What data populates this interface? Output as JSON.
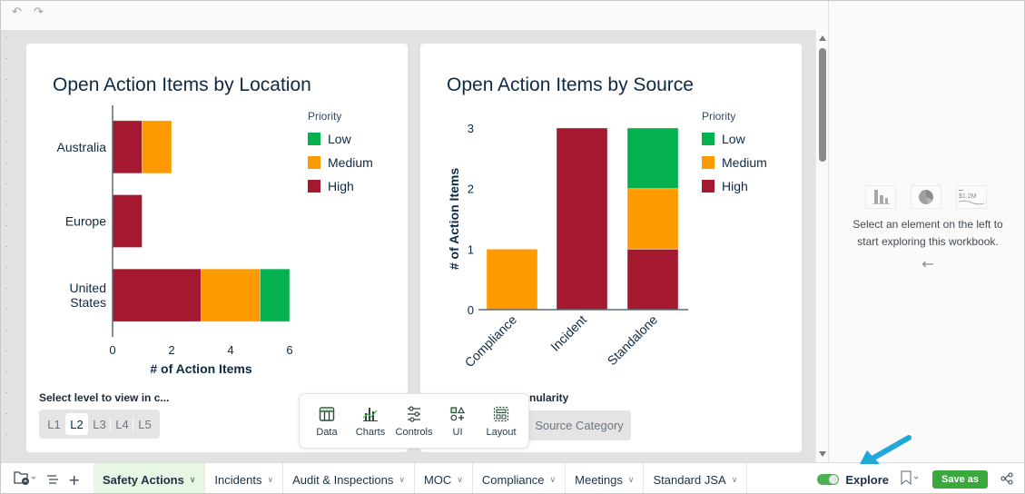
{
  "toolbar": {
    "undo_icon": "undo-icon",
    "redo_icon": "redo-icon"
  },
  "colors": {
    "low": "#05b04f",
    "medium": "#fd9a00",
    "high": "#a51930",
    "accent_green": "#3aa83d",
    "callout": "#1fa8d8"
  },
  "left_card": {
    "title": "Open Action Items by Location",
    "control_label": "Select level to view in c...",
    "levels": [
      "L1",
      "L2",
      "L3",
      "L4",
      "L5"
    ],
    "active_level": "L2"
  },
  "right_card": {
    "title": "Open Action Items by Source",
    "control_label": "nularity",
    "selected_option": "Source Category"
  },
  "chart_data": [
    {
      "type": "bar",
      "orientation": "horizontal",
      "stacked": true,
      "title": "Open Action Items by Location",
      "categories": [
        "Australia",
        "Europe",
        "United\nStates"
      ],
      "series": [
        {
          "name": "High",
          "values": [
            1,
            1,
            3
          ]
        },
        {
          "name": "Medium",
          "values": [
            1,
            0,
            2
          ]
        },
        {
          "name": "Low",
          "values": [
            0,
            0,
            1
          ]
        }
      ],
      "xlabel": "# of Action Items",
      "ylabel": "",
      "xlim": [
        0,
        6
      ],
      "xticks": [
        "0",
        "2",
        "4",
        "6"
      ],
      "legend": {
        "title": "Priority",
        "entries": [
          "Low",
          "Medium",
          "High"
        ],
        "position": "top-right"
      }
    },
    {
      "type": "bar",
      "orientation": "vertical",
      "stacked": true,
      "title": "Open Action Items by Source",
      "categories": [
        "Compliance",
        "Incident",
        "Standalone"
      ],
      "series": [
        {
          "name": "High",
          "values": [
            0,
            3,
            1
          ]
        },
        {
          "name": "Medium",
          "values": [
            1,
            0,
            1
          ]
        },
        {
          "name": "Low",
          "values": [
            0,
            0,
            1
          ]
        }
      ],
      "xlabel": "",
      "ylabel": "# of Action Items",
      "ylim": [
        0,
        3
      ],
      "yticks": [
        "0",
        "1",
        "2",
        "3"
      ],
      "legend": {
        "title": "Priority",
        "entries": [
          "Low",
          "Medium",
          "High"
        ],
        "position": "top-right"
      }
    }
  ],
  "add_toolbar": {
    "items": [
      {
        "label": "Data",
        "icon": "table-icon"
      },
      {
        "label": "Charts",
        "icon": "chart-icon"
      },
      {
        "label": "Controls",
        "icon": "sliders-icon"
      },
      {
        "label": "UI",
        "icon": "shapes-icon"
      },
      {
        "label": "Layout",
        "icon": "layout-icon"
      }
    ]
  },
  "explore_panel": {
    "line1": "Select an element on the left to",
    "line2": "start exploring this workbook.",
    "thumb_value": "$1.2M",
    "arrow": "←"
  },
  "bottom": {
    "tabs": [
      {
        "label": "Safety Actions",
        "active": true
      },
      {
        "label": "Incidents"
      },
      {
        "label": "Audit & Inspections"
      },
      {
        "label": "MOC"
      },
      {
        "label": "Compliance"
      },
      {
        "label": "Meetings"
      },
      {
        "label": "Standard JSA"
      }
    ],
    "explore_label": "Explore",
    "save_as_label": "Save as"
  }
}
